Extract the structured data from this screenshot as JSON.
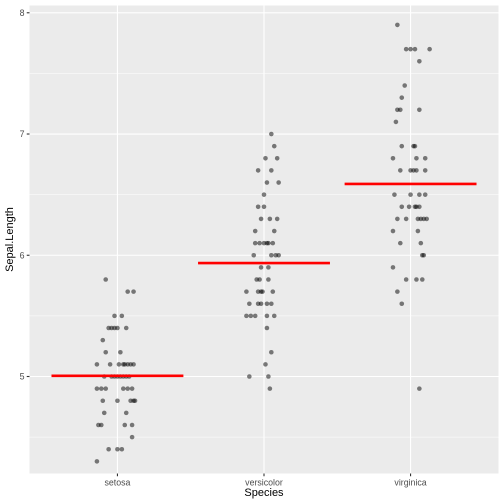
{
  "chart_data": {
    "type": "scatter",
    "title": "",
    "xlabel": "Species",
    "ylabel": "Sepal.Length",
    "categories": [
      "setosa",
      "versicolor",
      "virginica"
    ],
    "ylim": [
      4.2,
      8.06
    ],
    "yticks": [
      5,
      6,
      7,
      8
    ],
    "grid": true,
    "legend": "none",
    "colors": {
      "panel": "#EBEBEB",
      "grid": "#FFFFFF",
      "point": "#000000",
      "mean_line": "#FF0000"
    },
    "point_alpha": 0.5,
    "series": [
      {
        "category": "setosa",
        "mean": 5.006,
        "points": [
          {
            "jitter": -0.08,
            "y": 5.8
          },
          {
            "jitter": 0.07,
            "y": 5.7
          },
          {
            "jitter": 0.11,
            "y": 5.7
          },
          {
            "jitter": -0.02,
            "y": 5.5
          },
          {
            "jitter": 0.03,
            "y": 5.5
          },
          {
            "jitter": -0.06,
            "y": 5.4
          },
          {
            "jitter": -0.04,
            "y": 5.4
          },
          {
            "jitter": -0.02,
            "y": 5.4
          },
          {
            "jitter": 0.0,
            "y": 5.4
          },
          {
            "jitter": 0.06,
            "y": 5.4
          },
          {
            "jitter": -0.1,
            "y": 5.3
          },
          {
            "jitter": -0.08,
            "y": 5.2
          },
          {
            "jitter": 0.02,
            "y": 5.2
          },
          {
            "jitter": -0.05,
            "y": 5.1
          },
          {
            "jitter": 0.01,
            "y": 5.1
          },
          {
            "jitter": 0.04,
            "y": 5.1
          },
          {
            "jitter": 0.07,
            "y": 5.1
          },
          {
            "jitter": 0.09,
            "y": 5.1
          },
          {
            "jitter": 0.11,
            "y": 5.1
          },
          {
            "jitter": -0.14,
            "y": 5.1
          },
          {
            "jitter": 0.05,
            "y": 5.1
          },
          {
            "jitter": -0.09,
            "y": 5.0
          },
          {
            "jitter": -0.02,
            "y": 5.0
          },
          {
            "jitter": 0.0,
            "y": 5.0
          },
          {
            "jitter": 0.02,
            "y": 5.0
          },
          {
            "jitter": 0.04,
            "y": 5.0
          },
          {
            "jitter": 0.06,
            "y": 5.0
          },
          {
            "jitter": 0.08,
            "y": 5.0
          },
          {
            "jitter": -0.04,
            "y": 5.0
          },
          {
            "jitter": -0.14,
            "y": 4.9
          },
          {
            "jitter": -0.11,
            "y": 4.9
          },
          {
            "jitter": -0.08,
            "y": 4.9
          },
          {
            "jitter": 0.04,
            "y": 4.9
          },
          {
            "jitter": 0.07,
            "y": 4.9
          },
          {
            "jitter": 0.1,
            "y": 4.9
          },
          {
            "jitter": -0.1,
            "y": 4.8
          },
          {
            "jitter": 0.09,
            "y": 4.8
          },
          {
            "jitter": 0.11,
            "y": 4.8
          },
          {
            "jitter": 0.12,
            "y": 4.8
          },
          {
            "jitter": 0.0,
            "y": 4.8
          },
          {
            "jitter": 0.06,
            "y": 4.7
          },
          {
            "jitter": -0.09,
            "y": 4.7
          },
          {
            "jitter": -0.13,
            "y": 4.6
          },
          {
            "jitter": -0.11,
            "y": 4.6
          },
          {
            "jitter": 0.05,
            "y": 4.6
          },
          {
            "jitter": 0.1,
            "y": 4.6
          },
          {
            "jitter": 0.1,
            "y": 4.5
          },
          {
            "jitter": 0.0,
            "y": 4.4
          },
          {
            "jitter": 0.03,
            "y": 4.4
          },
          {
            "jitter": -0.06,
            "y": 4.4
          },
          {
            "jitter": -0.14,
            "y": 4.3
          }
        ]
      },
      {
        "category": "versicolor",
        "mean": 5.936,
        "points": [
          {
            "jitter": 0.05,
            "y": 7.0
          },
          {
            "jitter": 0.07,
            "y": 6.9
          },
          {
            "jitter": 0.01,
            "y": 6.8
          },
          {
            "jitter": 0.09,
            "y": 6.8
          },
          {
            "jitter": -0.04,
            "y": 6.7
          },
          {
            "jitter": 0.05,
            "y": 6.7
          },
          {
            "jitter": 0.02,
            "y": 6.6
          },
          {
            "jitter": 0.1,
            "y": 6.6
          },
          {
            "jitter": 0.0,
            "y": 6.5
          },
          {
            "jitter": -0.04,
            "y": 6.4
          },
          {
            "jitter": 0.0,
            "y": 6.4
          },
          {
            "jitter": -0.02,
            "y": 6.3
          },
          {
            "jitter": 0.04,
            "y": 6.3
          },
          {
            "jitter": 0.09,
            "y": 6.3
          },
          {
            "jitter": -0.06,
            "y": 6.2
          },
          {
            "jitter": 0.07,
            "y": 6.2
          },
          {
            "jitter": -0.06,
            "y": 6.1
          },
          {
            "jitter": -0.03,
            "y": 6.1
          },
          {
            "jitter": 0.0,
            "y": 6.1
          },
          {
            "jitter": 0.02,
            "y": 6.1
          },
          {
            "jitter": 0.06,
            "y": 6.1
          },
          {
            "jitter": 0.03,
            "y": 6.1
          },
          {
            "jitter": -0.07,
            "y": 6.0
          },
          {
            "jitter": 0.05,
            "y": 6.0
          },
          {
            "jitter": 0.08,
            "y": 6.0
          },
          {
            "jitter": 0.1,
            "y": 6.0
          },
          {
            "jitter": -0.02,
            "y": 5.9
          },
          {
            "jitter": 0.03,
            "y": 5.9
          },
          {
            "jitter": -0.05,
            "y": 5.8
          },
          {
            "jitter": -0.03,
            "y": 5.8
          },
          {
            "jitter": 0.03,
            "y": 5.8
          },
          {
            "jitter": -0.12,
            "y": 5.7
          },
          {
            "jitter": -0.04,
            "y": 5.7
          },
          {
            "jitter": -0.01,
            "y": 5.7
          },
          {
            "jitter": 0.06,
            "y": 5.7
          },
          {
            "jitter": -0.02,
            "y": 5.7
          },
          {
            "jitter": -0.1,
            "y": 5.6
          },
          {
            "jitter": -0.04,
            "y": 5.6
          },
          {
            "jitter": -0.02,
            "y": 5.6
          },
          {
            "jitter": 0.02,
            "y": 5.6
          },
          {
            "jitter": 0.05,
            "y": 5.6
          },
          {
            "jitter": -0.12,
            "y": 5.5
          },
          {
            "jitter": -0.09,
            "y": 5.5
          },
          {
            "jitter": -0.06,
            "y": 5.5
          },
          {
            "jitter": 0.02,
            "y": 5.5
          },
          {
            "jitter": 0.07,
            "y": 5.5
          },
          {
            "jitter": 0.02,
            "y": 5.4
          },
          {
            "jitter": 0.05,
            "y": 5.2
          },
          {
            "jitter": 0.01,
            "y": 5.1
          },
          {
            "jitter": -0.1,
            "y": 5.0
          },
          {
            "jitter": 0.03,
            "y": 5.0
          },
          {
            "jitter": 0.04,
            "y": 4.9
          }
        ]
      },
      {
        "category": "virginica",
        "mean": 6.588,
        "points": [
          {
            "jitter": -0.09,
            "y": 7.9
          },
          {
            "jitter": -0.03,
            "y": 7.7
          },
          {
            "jitter": 0.0,
            "y": 7.7
          },
          {
            "jitter": 0.03,
            "y": 7.7
          },
          {
            "jitter": 0.13,
            "y": 7.7
          },
          {
            "jitter": 0.06,
            "y": 7.6
          },
          {
            "jitter": -0.04,
            "y": 7.4
          },
          {
            "jitter": -0.06,
            "y": 7.3
          },
          {
            "jitter": -0.09,
            "y": 7.2
          },
          {
            "jitter": -0.07,
            "y": 7.2
          },
          {
            "jitter": 0.06,
            "y": 7.2
          },
          {
            "jitter": -0.1,
            "y": 7.1
          },
          {
            "jitter": -0.06,
            "y": 6.9
          },
          {
            "jitter": 0.02,
            "y": 6.9
          },
          {
            "jitter": 0.03,
            "y": 6.9
          },
          {
            "jitter": -0.12,
            "y": 6.8
          },
          {
            "jitter": 0.04,
            "y": 6.8
          },
          {
            "jitter": 0.1,
            "y": 6.8
          },
          {
            "jitter": -0.07,
            "y": 6.7
          },
          {
            "jitter": 0.0,
            "y": 6.7
          },
          {
            "jitter": 0.02,
            "y": 6.7
          },
          {
            "jitter": 0.04,
            "y": 6.7
          },
          {
            "jitter": 0.1,
            "y": 6.7
          },
          {
            "jitter": -0.11,
            "y": 6.5
          },
          {
            "jitter": 0.0,
            "y": 6.5
          },
          {
            "jitter": 0.06,
            "y": 6.5
          },
          {
            "jitter": 0.1,
            "y": 6.5
          },
          {
            "jitter": -0.06,
            "y": 6.4
          },
          {
            "jitter": -0.01,
            "y": 6.4
          },
          {
            "jitter": 0.03,
            "y": 6.4
          },
          {
            "jitter": 0.06,
            "y": 6.4
          },
          {
            "jitter": 0.04,
            "y": 6.4
          },
          {
            "jitter": -0.09,
            "y": 6.3
          },
          {
            "jitter": -0.03,
            "y": 6.3
          },
          {
            "jitter": 0.05,
            "y": 6.3
          },
          {
            "jitter": 0.07,
            "y": 6.3
          },
          {
            "jitter": 0.09,
            "y": 6.3
          },
          {
            "jitter": 0.11,
            "y": 6.3
          },
          {
            "jitter": -0.12,
            "y": 6.2
          },
          {
            "jitter": 0.05,
            "y": 6.2
          },
          {
            "jitter": -0.07,
            "y": 6.1
          },
          {
            "jitter": 0.07,
            "y": 6.1
          },
          {
            "jitter": 0.08,
            "y": 6.0
          },
          {
            "jitter": 0.09,
            "y": 6.0
          },
          {
            "jitter": -0.12,
            "y": 5.9
          },
          {
            "jitter": -0.03,
            "y": 5.8
          },
          {
            "jitter": 0.04,
            "y": 5.8
          },
          {
            "jitter": 0.08,
            "y": 5.8
          },
          {
            "jitter": -0.09,
            "y": 5.7
          },
          {
            "jitter": -0.06,
            "y": 5.6
          },
          {
            "jitter": 0.06,
            "y": 4.9
          }
        ]
      }
    ]
  }
}
